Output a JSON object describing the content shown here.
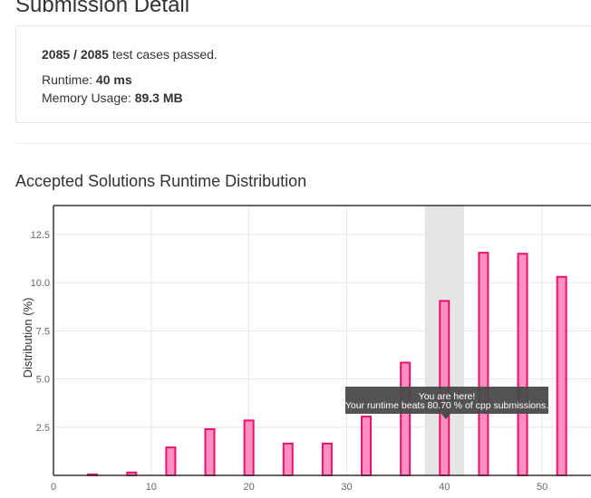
{
  "header": {
    "title": "Submission Detail"
  },
  "summary": {
    "cases_passed": "2085 / 2085",
    "cases_suffix": "test cases passed.",
    "runtime_label": "Runtime:",
    "runtime_value": "40 ms",
    "memory_label": "Memory Usage:",
    "memory_value": "89.3 MB"
  },
  "distribution": {
    "title": "Accepted Solutions Runtime Distribution"
  },
  "tooltip": {
    "line1": "You are here!",
    "line2": "Your runtime beats 80.70 % of cpp submissions."
  },
  "colors": {
    "bar_fill": "#ff8fc2",
    "bar_stroke": "#e8126b",
    "highlight_band": "#e5e5e5",
    "tooltip_bg": "#4a4a4a"
  },
  "chart_data": {
    "type": "bar",
    "xlabel": "",
    "ylabel": "Distribution (%)",
    "xlim": [
      0,
      55
    ],
    "ylim": [
      0,
      14
    ],
    "x_ticks": [
      0,
      10,
      20,
      30,
      40,
      50
    ],
    "y_ticks": [
      2.5,
      5.0,
      7.5,
      10.0,
      12.5
    ],
    "grid": true,
    "highlight_x": 40,
    "series": [
      {
        "x": [
          4,
          8,
          12,
          16,
          20,
          24,
          28,
          32,
          36,
          40,
          44,
          48,
          52
        ],
        "values": [
          0.05,
          0.15,
          1.45,
          2.4,
          2.85,
          1.65,
          1.65,
          3.05,
          5.85,
          9.05,
          11.55,
          11.5,
          10.3
        ]
      }
    ]
  }
}
